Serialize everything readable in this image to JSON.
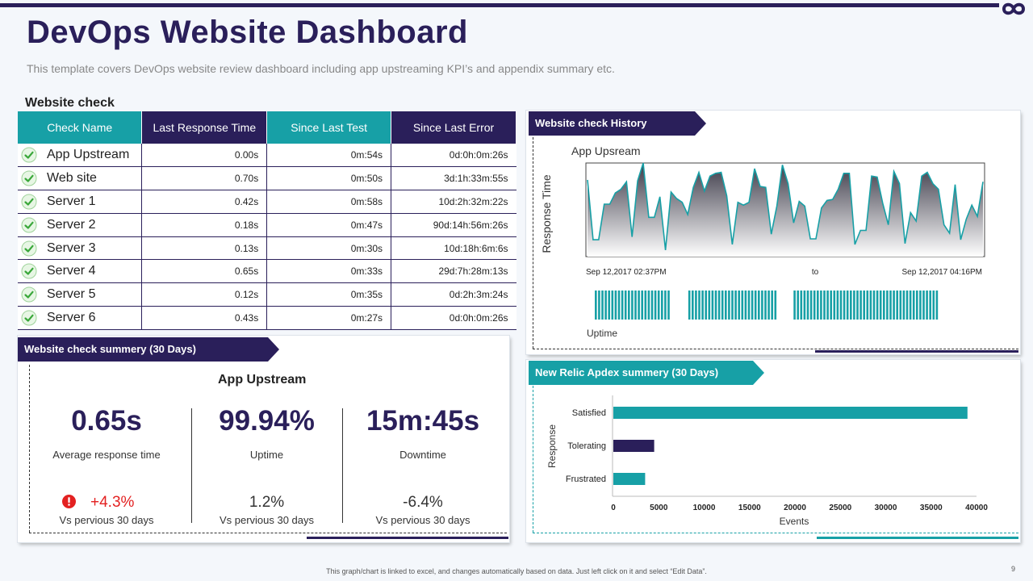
{
  "header": {
    "title": "DevOps Website Dashboard",
    "subtitle": "This template covers DevOps website review dashboard including app upstreaming KPI’s and appendix summary etc."
  },
  "website_check": {
    "label": "Website check",
    "columns": [
      "Check Name",
      "Last Response  Time",
      "Since Last Test",
      "Since Last Error"
    ],
    "rows": [
      {
        "name": "App Upstream",
        "last_response": "0.00s",
        "since_test": "0m:54s",
        "since_error": "0d:0h:0m:26s"
      },
      {
        "name": "Web site",
        "last_response": "0.70s",
        "since_test": "0m:50s",
        "since_error": "3d:1h:33m:55s"
      },
      {
        "name": "Server 1",
        "last_response": "0.42s",
        "since_test": "0m:58s",
        "since_error": "10d:2h:32m:22s"
      },
      {
        "name": "Server 2",
        "last_response": "0.18s",
        "since_test": "0m:47s",
        "since_error": "90d:14h:56m:26s"
      },
      {
        "name": "Server 3",
        "last_response": "0.13s",
        "since_test": "0m:30s",
        "since_error": "10d:18h:6m:6s"
      },
      {
        "name": "Server 4",
        "last_response": "0.65s",
        "since_test": "0m:33s",
        "since_error": "29d:7h:28m:13s"
      },
      {
        "name": "Server 5",
        "last_response": "0.12s",
        "since_test": "0m:35s",
        "since_error": "0d:2h:3m:24s"
      },
      {
        "name": "Server 6",
        "last_response": "0.43s",
        "since_test": "0m:27s",
        "since_error": "0d:0h:0m:26s"
      }
    ]
  },
  "summary": {
    "ribbon": "Website check summery (30 Days)",
    "title": "App Upstream",
    "stats": [
      {
        "value": "0.65s",
        "label": "Average  response time",
        "change": "+4.3%",
        "vs": "Vs pervious  30 days"
      },
      {
        "value": "99.94%",
        "label": "Uptime",
        "change": "1.2%",
        "vs": "Vs pervious  30 days"
      },
      {
        "value": "15m:45s",
        "label": "Downtime",
        "change": "-6.4%",
        "vs": "Vs pervious  30 days"
      }
    ]
  },
  "colors": {
    "dark": "#2a1f5a",
    "teal": "#17a0a6",
    "alert": "#e32121"
  },
  "footer": {
    "note": "This graph/chart is linked to excel, and changes automatically based on data. Just left click on it and select “Edit Data”.",
    "page": "9"
  },
  "chart_data": [
    {
      "type": "area",
      "ribbon": "Website check History",
      "title": "App Upsream",
      "ylabel": "Response Time",
      "x_start": "Sep 12,2017 02:37PM",
      "x_mid": "to",
      "x_end": "Sep 12,2017 04:16PM",
      "uptime_label": "Uptime",
      "ylim": [
        0,
        10
      ],
      "values": [
        8.2,
        1.8,
        1.8,
        5.6,
        5.6,
        6.8,
        7.2,
        8.0,
        2.1,
        8.1,
        10.0,
        4.2,
        4.2,
        6.4,
        0.7,
        6.9,
        6.2,
        5.8,
        4.5,
        7.4,
        9.0,
        7.0,
        8.6,
        8.9,
        9.0,
        6.5,
        1.3,
        5.8,
        5.5,
        5.8,
        9.4,
        7.5,
        7.4,
        2.4,
        5.4,
        9.8,
        7.8,
        3.6,
        5.9,
        5.4,
        1.9,
        1.9,
        5.2,
        6.0,
        6.1,
        7.2,
        8.9,
        8.9,
        1.3,
        2.8,
        2.8,
        8.6,
        8.5,
        5.7,
        3.4,
        9.1,
        7.8,
        1.4,
        4.7,
        3.8,
        8.6,
        9.0,
        7.8,
        7.2,
        3.4,
        2.5,
        7.7,
        1.8,
        4.0,
        5.5,
        4.3,
        8.0
      ],
      "uptime_segments": [
        [
          0,
          0.19
        ],
        [
          0.24,
          0.47
        ],
        [
          0.51,
          0.88
        ]
      ]
    },
    {
      "type": "bar",
      "orientation": "horizontal",
      "ribbon": "New Relic Apdex summery (30 Days)",
      "categories": [
        "Satisfied",
        "Tolerating",
        "Frustrated"
      ],
      "values": [
        39000,
        4500,
        3500
      ],
      "colors": [
        "#17a0a6",
        "#2a1f5a",
        "#17a0a6"
      ],
      "xlabel": "Events",
      "ylabel": "Response",
      "xlim": [
        0,
        40000
      ],
      "xticks": [
        0,
        5000,
        10000,
        15000,
        20000,
        25000,
        30000,
        35000,
        40000
      ]
    }
  ]
}
